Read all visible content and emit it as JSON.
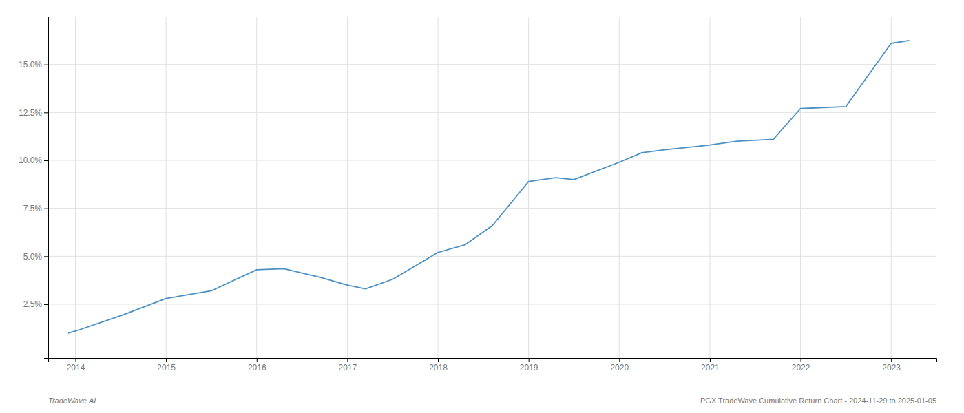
{
  "chart_data": {
    "type": "line",
    "x": [
      2013.92,
      2014.0,
      2014.5,
      2015.0,
      2015.5,
      2016.0,
      2016.3,
      2016.7,
      2017.0,
      2017.2,
      2017.5,
      2018.0,
      2018.3,
      2018.6,
      2019.0,
      2019.3,
      2019.5,
      2020.0,
      2020.25,
      2020.5,
      2021.0,
      2021.3,
      2021.7,
      2022.0,
      2022.5,
      2023.0,
      2023.2
    ],
    "values": [
      1.0,
      1.1,
      1.9,
      2.8,
      3.2,
      4.3,
      4.35,
      3.9,
      3.5,
      3.3,
      3.8,
      5.2,
      5.6,
      6.6,
      8.9,
      9.1,
      9.0,
      9.9,
      10.4,
      10.55,
      10.8,
      11.0,
      11.1,
      12.7,
      12.8,
      16.1,
      16.25
    ],
    "color": "#4a90c4",
    "xlim": [
      2013.7,
      2023.5
    ],
    "ylim": [
      -0.3,
      17.5
    ],
    "xticks": [
      2014,
      2015,
      2016,
      2017,
      2018,
      2019,
      2020,
      2021,
      2022,
      2023
    ],
    "yticks": [
      {
        "value": 2.5,
        "label": "2.5%"
      },
      {
        "value": 5.0,
        "label": "5.0%"
      },
      {
        "value": 7.5,
        "label": "7.5%"
      },
      {
        "value": 10.0,
        "label": "10.0%"
      },
      {
        "value": 12.5,
        "label": "12.5%"
      },
      {
        "value": 15.0,
        "label": "15.0%"
      }
    ],
    "grid": true,
    "annotations": [
      "TradeWave.AI",
      "PGX TradeWave Cumulative Return Chart - 2024-11-29 to 2025-01-05"
    ]
  }
}
